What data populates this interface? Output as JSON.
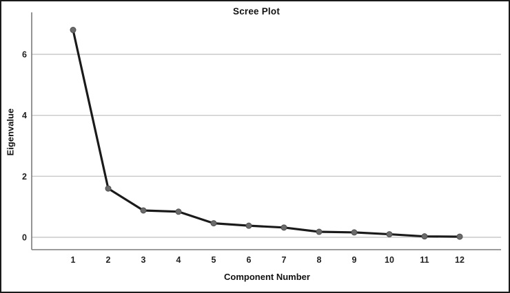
{
  "figure": {
    "background": "#ffffff",
    "border_color": "#1a1a1a"
  },
  "chart_data": {
    "type": "line",
    "title": "Scree Plot",
    "xlabel": "Component Number",
    "ylabel": "Eigenvalue",
    "categories": [
      1,
      2,
      3,
      4,
      5,
      6,
      7,
      8,
      9,
      10,
      11,
      12
    ],
    "series": [
      {
        "name": "Eigenvalue",
        "values": [
          6.8,
          1.6,
          0.88,
          0.84,
          0.46,
          0.38,
          0.32,
          0.18,
          0.16,
          0.1,
          0.03,
          0.02
        ]
      }
    ],
    "yticks": [
      0,
      2,
      4,
      6
    ],
    "ylim": [
      0,
      7.2
    ],
    "grid": "horizontal",
    "legend": "none",
    "colors": {
      "line": "#1a1a1a",
      "marker_fill": "#6b6b6b",
      "marker_stroke": "#4f4f4f",
      "gridline": "#c9c9c9",
      "axis": "#7a7a7a"
    }
  }
}
